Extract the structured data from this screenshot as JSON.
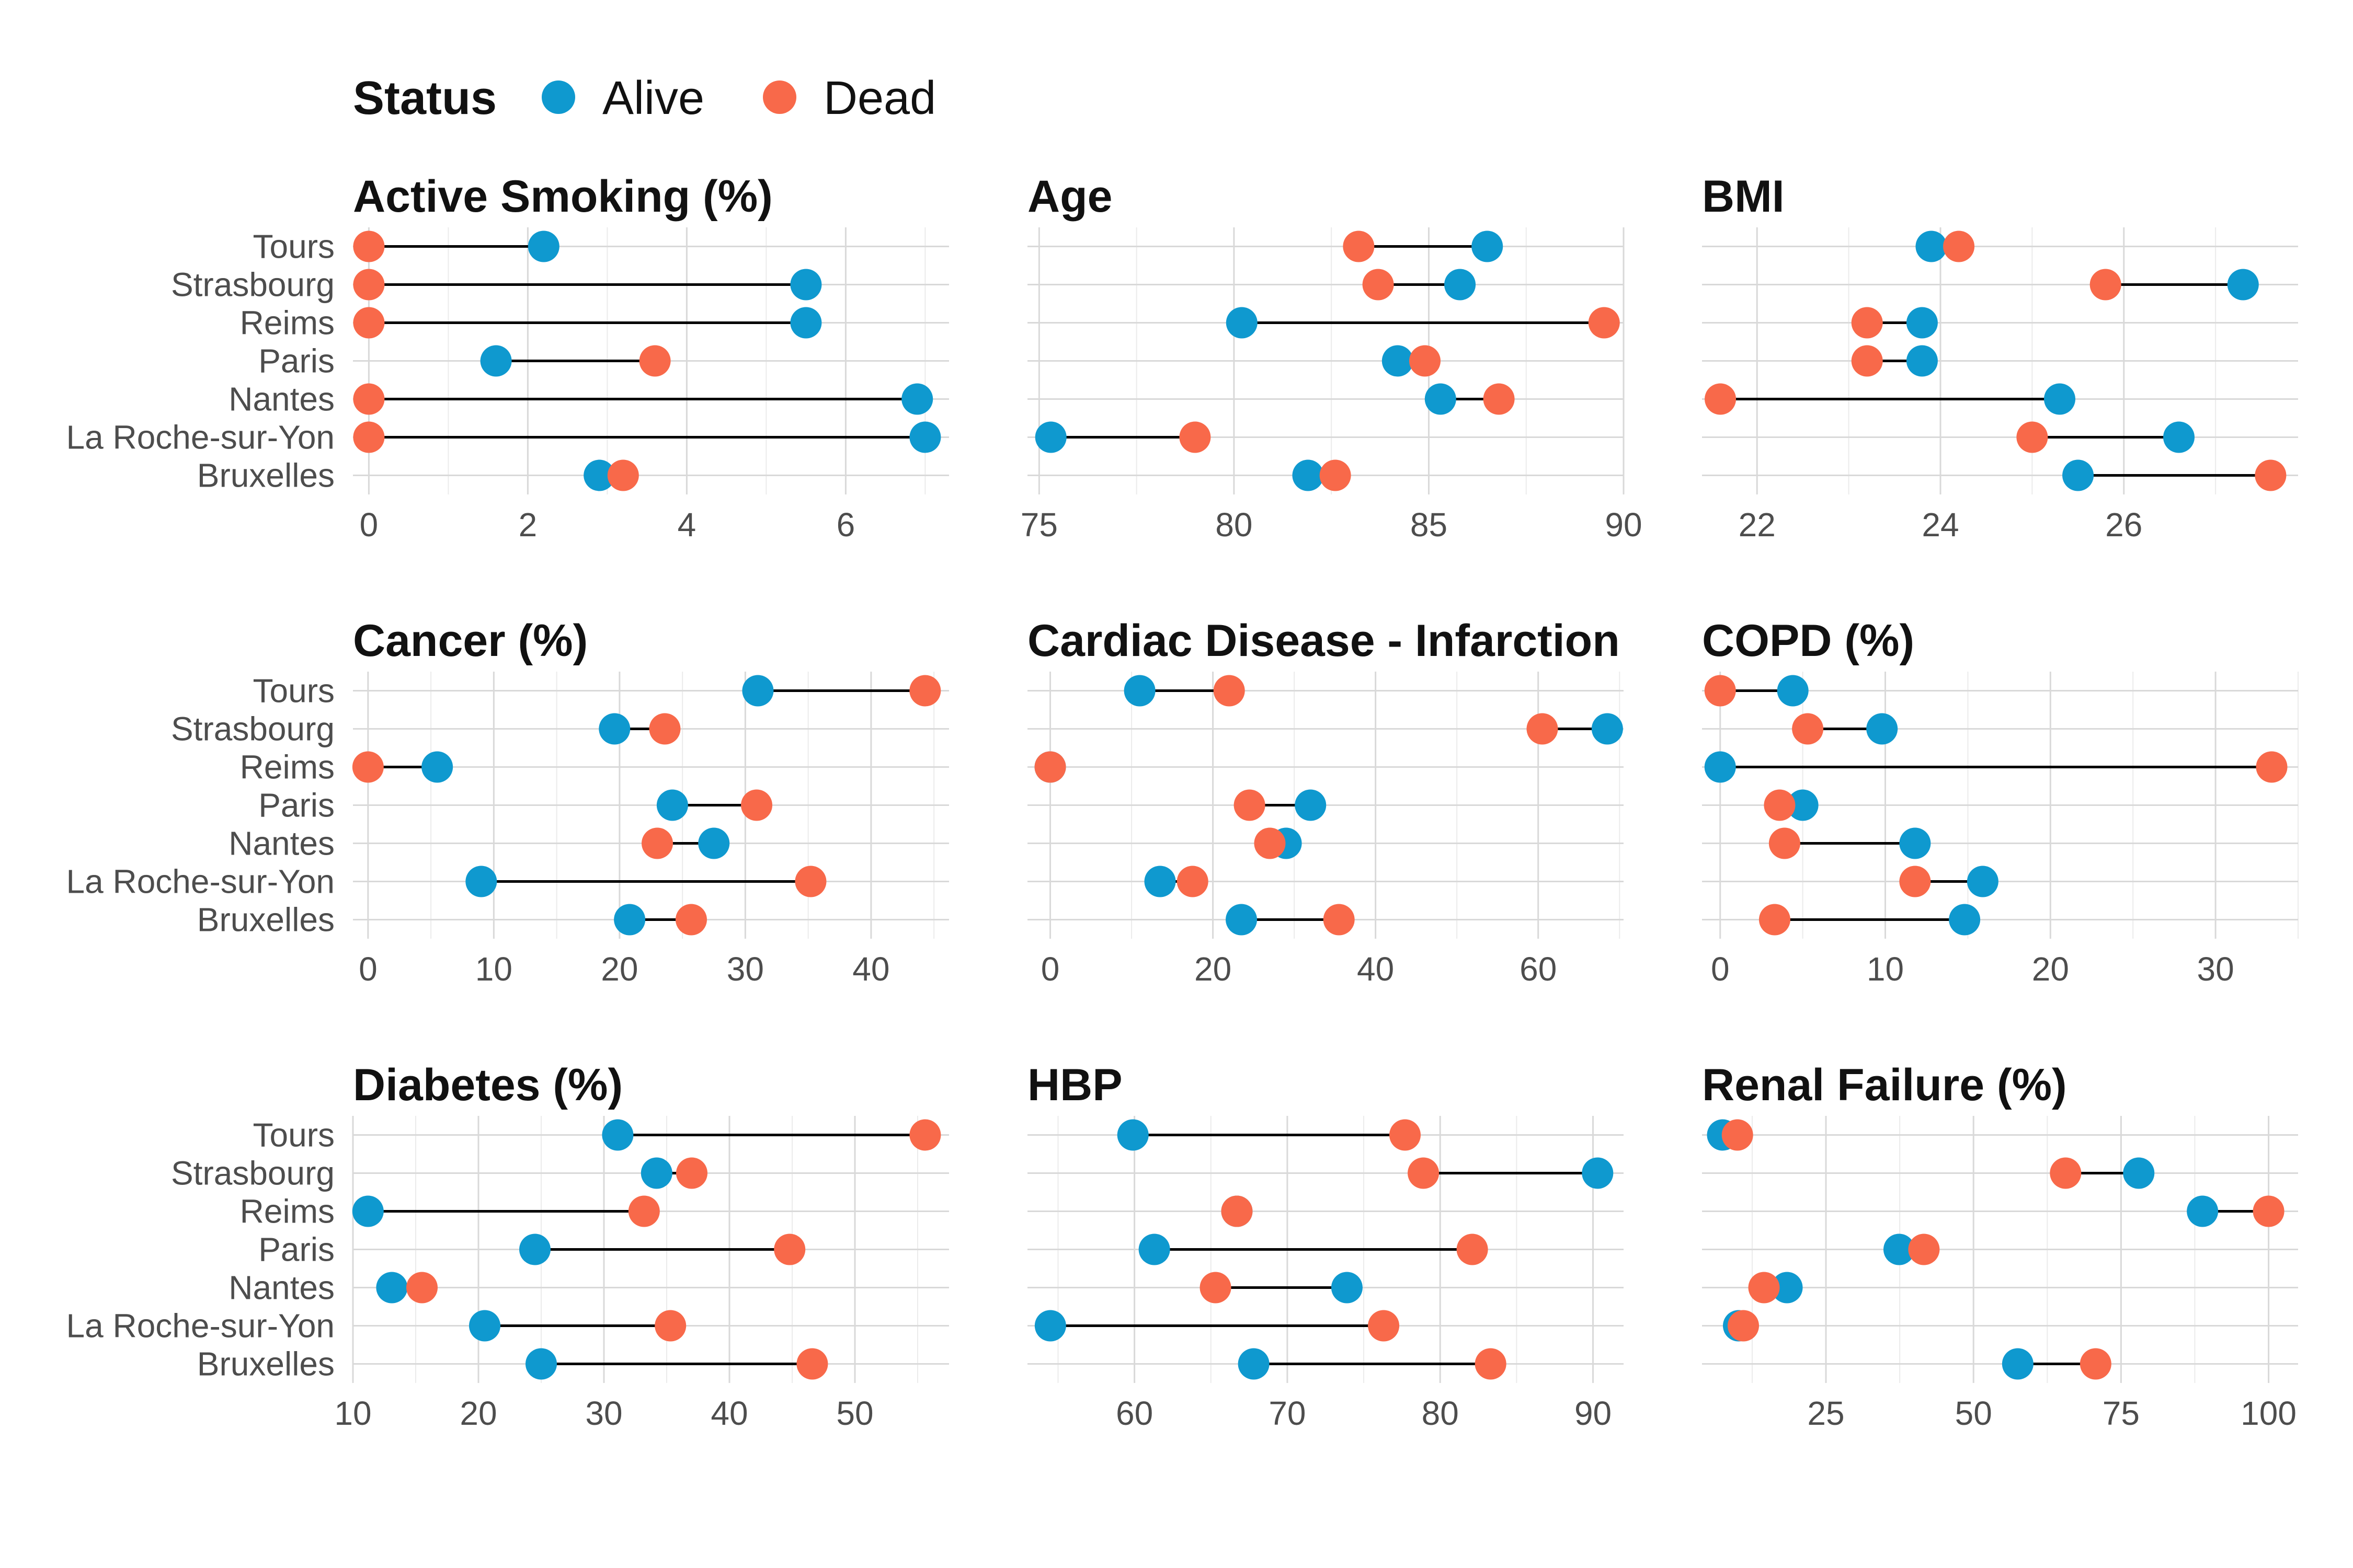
{
  "legend": {
    "title": "Status",
    "items": [
      {
        "label": "Alive",
        "color": "#0F99CF"
      },
      {
        "label": "Dead",
        "color": "#F8694A"
      }
    ]
  },
  "chart_data": [
    {
      "type": "dumbbell",
      "title": "Active Smoking (%)",
      "categories": [
        "Tours",
        "Strasbourg",
        "Reims",
        "Paris",
        "Nantes",
        "La Roche-sur-Yon",
        "Bruxelles"
      ],
      "xlim": [
        -0.2,
        7.3
      ],
      "xticks": [
        0,
        2,
        4,
        6
      ],
      "series": [
        {
          "name": "Alive",
          "values": [
            2.2,
            5.5,
            5.5,
            1.6,
            6.9,
            7.0,
            2.9
          ]
        },
        {
          "name": "Dead",
          "values": [
            0.0,
            0.0,
            0.0,
            3.6,
            0.0,
            0.0,
            3.2
          ]
        }
      ]
    },
    {
      "type": "dumbbell",
      "title": "Age",
      "categories": [
        "Tours",
        "Strasbourg",
        "Reims",
        "Paris",
        "Nantes",
        "La Roche-sur-Yon",
        "Bruxelles"
      ],
      "xlim": [
        74.7,
        90.0
      ],
      "xticks": [
        75,
        80,
        85,
        90
      ],
      "series": [
        {
          "name": "Alive",
          "values": [
            86.5,
            85.8,
            80.2,
            84.2,
            85.3,
            75.3,
            81.9
          ]
        },
        {
          "name": "Dead",
          "values": [
            83.2,
            83.7,
            89.5,
            84.9,
            86.8,
            79.0,
            82.6
          ]
        }
      ]
    },
    {
      "type": "dumbbell",
      "title": "BMI",
      "categories": [
        "Tours",
        "Strasbourg",
        "Reims",
        "Paris",
        "Nantes",
        "La Roche-sur-Yon",
        "Bruxelles"
      ],
      "xlim": [
        21.4,
        27.9
      ],
      "xticks": [
        22,
        24,
        26
      ],
      "series": [
        {
          "name": "Alive",
          "values": [
            23.9,
            27.3,
            23.8,
            23.8,
            25.3,
            26.6,
            25.5
          ]
        },
        {
          "name": "Dead",
          "values": [
            24.2,
            25.8,
            23.2,
            23.2,
            21.6,
            25.0,
            27.6
          ]
        }
      ]
    },
    {
      "type": "dumbbell",
      "title": "Cancer (%)",
      "categories": [
        "Tours",
        "Strasbourg",
        "Reims",
        "Paris",
        "Nantes",
        "La Roche-sur-Yon",
        "Bruxelles"
      ],
      "xlim": [
        -1.2,
        46.2
      ],
      "xticks": [
        0,
        10,
        20,
        30,
        40
      ],
      "series": [
        {
          "name": "Alive",
          "values": [
            31.0,
            19.6,
            5.5,
            24.2,
            27.5,
            9.0,
            20.8
          ]
        },
        {
          "name": "Dead",
          "values": [
            44.3,
            23.6,
            0.0,
            30.9,
            23.0,
            35.2,
            25.7
          ]
        }
      ]
    },
    {
      "type": "dumbbell",
      "title": "Cardiac Disease - Infarction",
      "categories": [
        "Tours",
        "Strasbourg",
        "Reims",
        "Paris",
        "Nantes",
        "La Roche-sur-Yon",
        "Bruxelles"
      ],
      "xlim": [
        -2.8,
        70.5
      ],
      "xticks": [
        0,
        20,
        40,
        60
      ],
      "series": [
        {
          "name": "Alive",
          "values": [
            11.0,
            68.5,
            0.0,
            32.0,
            29.0,
            13.5,
            23.5
          ]
        },
        {
          "name": "Dead",
          "values": [
            22.0,
            60.5,
            0.0,
            24.5,
            27.0,
            17.5,
            35.5
          ]
        }
      ]
    },
    {
      "type": "dumbbell",
      "title": "COPD (%)",
      "categories": [
        "Tours",
        "Strasbourg",
        "Reims",
        "Paris",
        "Nantes",
        "La Roche-sur-Yon",
        "Bruxelles"
      ],
      "xlim": [
        -1.1,
        35.0
      ],
      "xticks": [
        0,
        10,
        20,
        30
      ],
      "series": [
        {
          "name": "Alive",
          "values": [
            4.4,
            9.8,
            0.0,
            5.0,
            11.8,
            15.9,
            14.8
          ]
        },
        {
          "name": "Dead",
          "values": [
            0.0,
            5.3,
            33.4,
            3.6,
            3.9,
            11.8,
            3.3
          ]
        }
      ]
    },
    {
      "type": "dumbbell",
      "title": "Diabetes (%)",
      "categories": [
        "Tours",
        "Strasbourg",
        "Reims",
        "Paris",
        "Nantes",
        "La Roche-sur-Yon",
        "Bruxelles"
      ],
      "xlim": [
        10.0,
        57.5
      ],
      "xticks": [
        10,
        20,
        30,
        40,
        50
      ],
      "series": [
        {
          "name": "Alive",
          "values": [
            31.1,
            34.2,
            11.2,
            24.5,
            13.1,
            20.5,
            25.0
          ]
        },
        {
          "name": "Dead",
          "values": [
            55.6,
            37.0,
            33.2,
            44.8,
            15.5,
            35.3,
            46.6
          ]
        }
      ]
    },
    {
      "type": "dumbbell",
      "title": "HBP",
      "categories": [
        "Tours",
        "Strasbourg",
        "Reims",
        "Paris",
        "Nantes",
        "La Roche-sur-Yon",
        "Bruxelles"
      ],
      "xlim": [
        53.0,
        92.0
      ],
      "xticks": [
        60,
        70,
        80,
        90
      ],
      "series": [
        {
          "name": "Alive",
          "values": [
            59.9,
            90.3,
            66.7,
            61.3,
            73.9,
            54.5,
            67.8
          ]
        },
        {
          "name": "Dead",
          "values": [
            77.7,
            78.9,
            66.7,
            82.1,
            65.3,
            76.3,
            83.3
          ]
        }
      ]
    },
    {
      "type": "dumbbell",
      "title": "Renal Failure (%)",
      "categories": [
        "Tours",
        "Strasbourg",
        "Reims",
        "Paris",
        "Nantes",
        "La Roche-sur-Yon",
        "Bruxelles"
      ],
      "xlim": [
        4.0,
        105.0
      ],
      "xticks": [
        25,
        50,
        75,
        100
      ],
      "series": [
        {
          "name": "Alive",
          "values": [
            7.5,
            78.0,
            88.8,
            37.4,
            18.4,
            10.2,
            57.5
          ]
        },
        {
          "name": "Dead",
          "values": [
            10.0,
            65.6,
            100.0,
            41.6,
            14.5,
            11.0,
            70.7
          ]
        }
      ]
    }
  ]
}
